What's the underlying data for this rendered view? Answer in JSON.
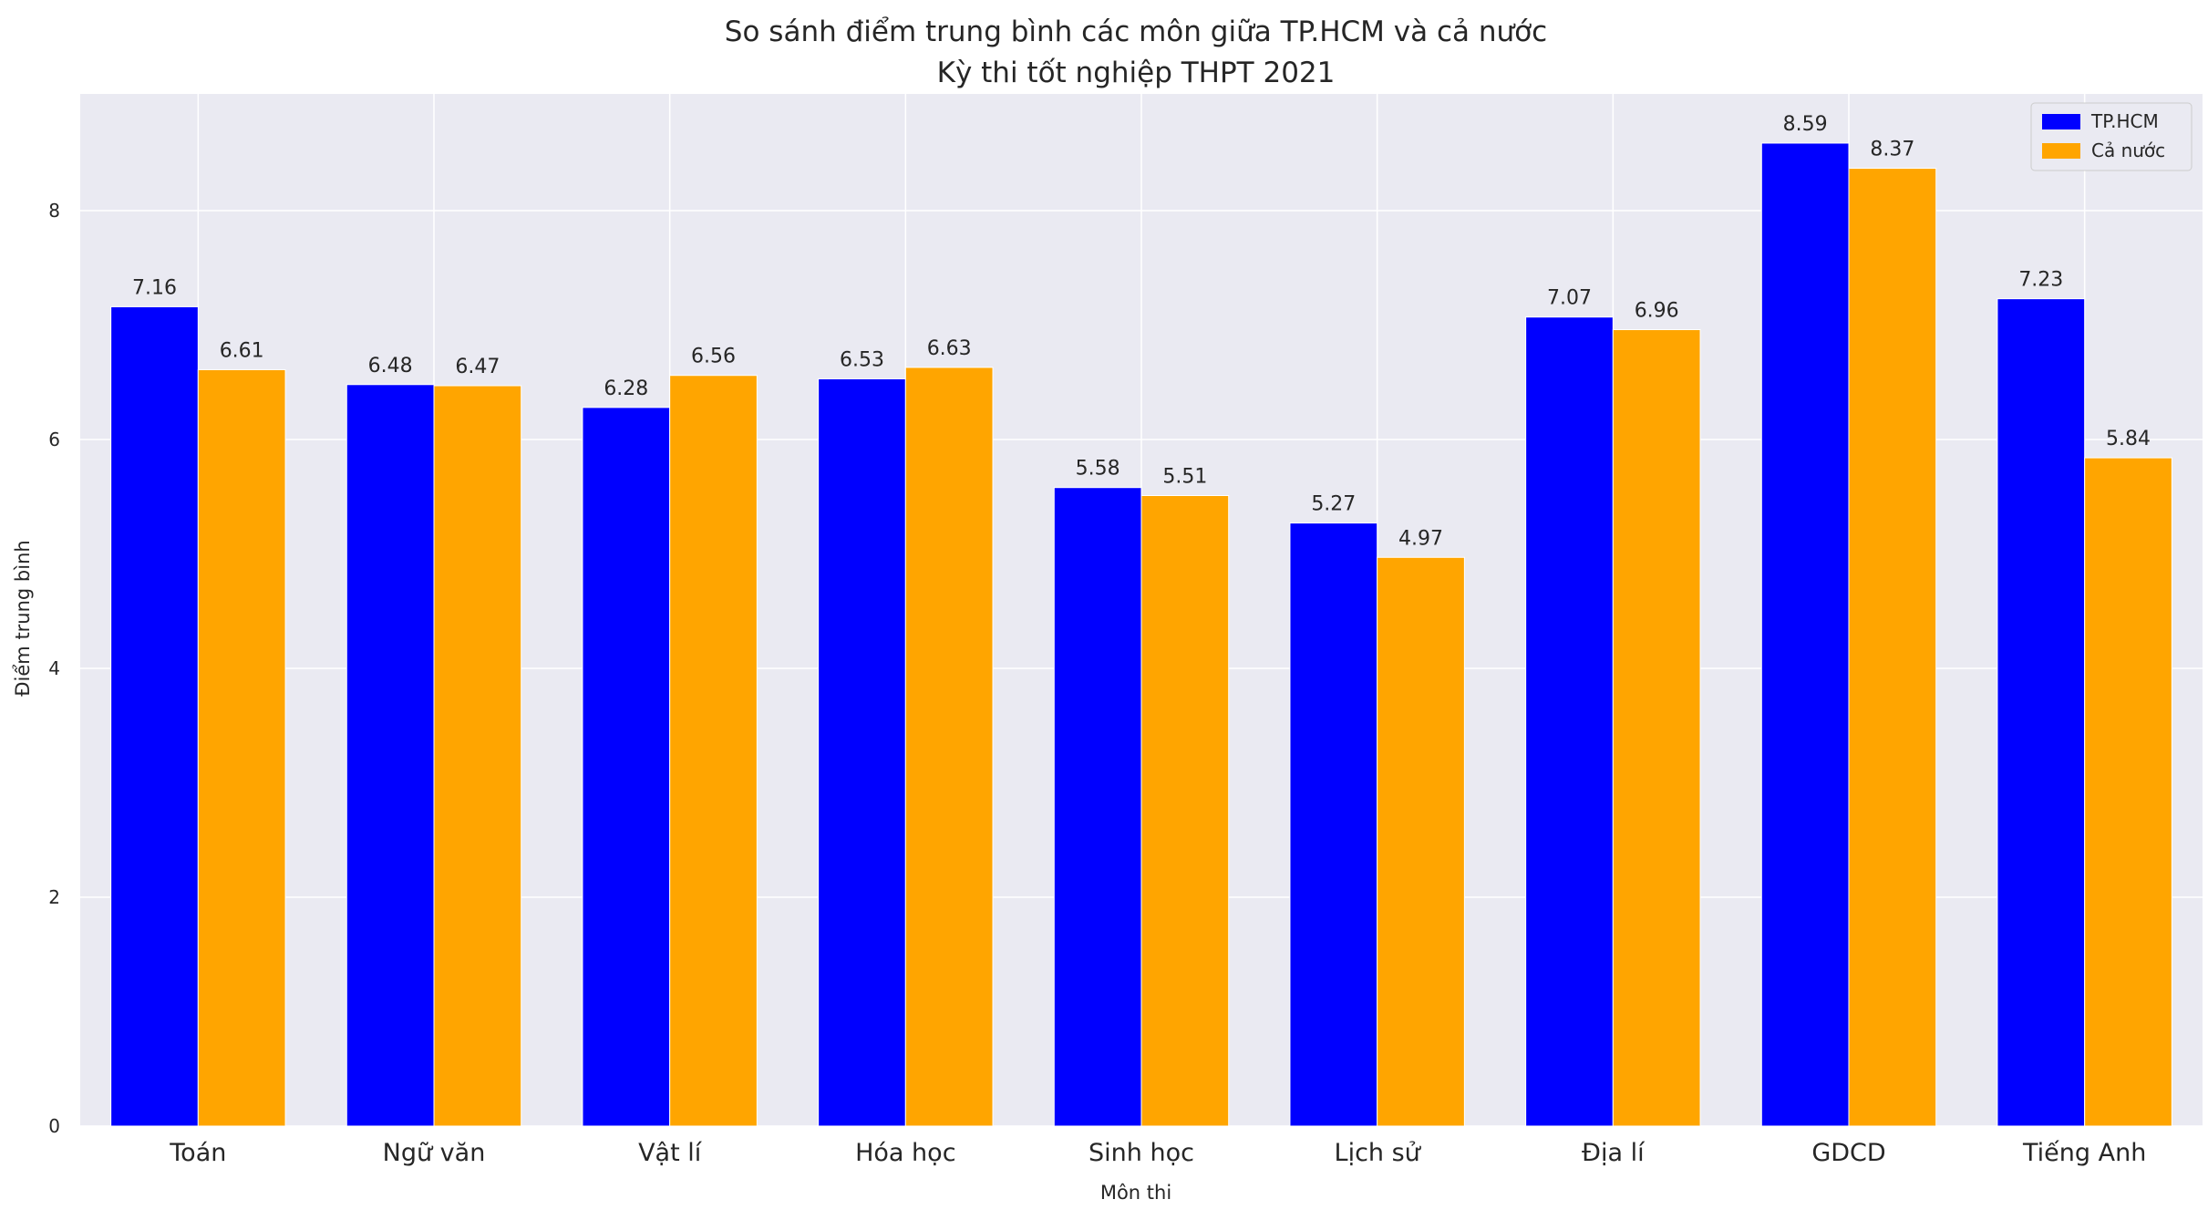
{
  "chart_data": {
    "type": "bar",
    "title": "So sánh điểm trung bình các môn giữa TP.HCM và cả nước",
    "subtitle": "Kỳ thi tốt nghiệp THPT 2021",
    "xlabel": "Môn thi",
    "ylabel": "Điểm trung bình",
    "categories": [
      "Toán",
      "Ngữ văn",
      "Vật lí",
      "Hóa học",
      "Sinh học",
      "Lịch sử",
      "Địa lí",
      "GDCD",
      "Tiếng Anh"
    ],
    "series": [
      {
        "name": "TP.HCM",
        "color": "#0000ff",
        "values": [
          7.16,
          6.48,
          6.28,
          6.53,
          5.58,
          5.27,
          7.07,
          8.59,
          7.23
        ]
      },
      {
        "name": "Cả nước",
        "color": "#ffa500",
        "values": [
          6.61,
          6.47,
          6.56,
          6.63,
          5.51,
          4.97,
          6.96,
          8.37,
          5.84
        ]
      }
    ],
    "ylim": [
      0,
      9.02
    ],
    "yticks": [
      0,
      2,
      4,
      6,
      8
    ],
    "grid": true,
    "legend_position": "top-right",
    "background": "#eaeaf2"
  }
}
